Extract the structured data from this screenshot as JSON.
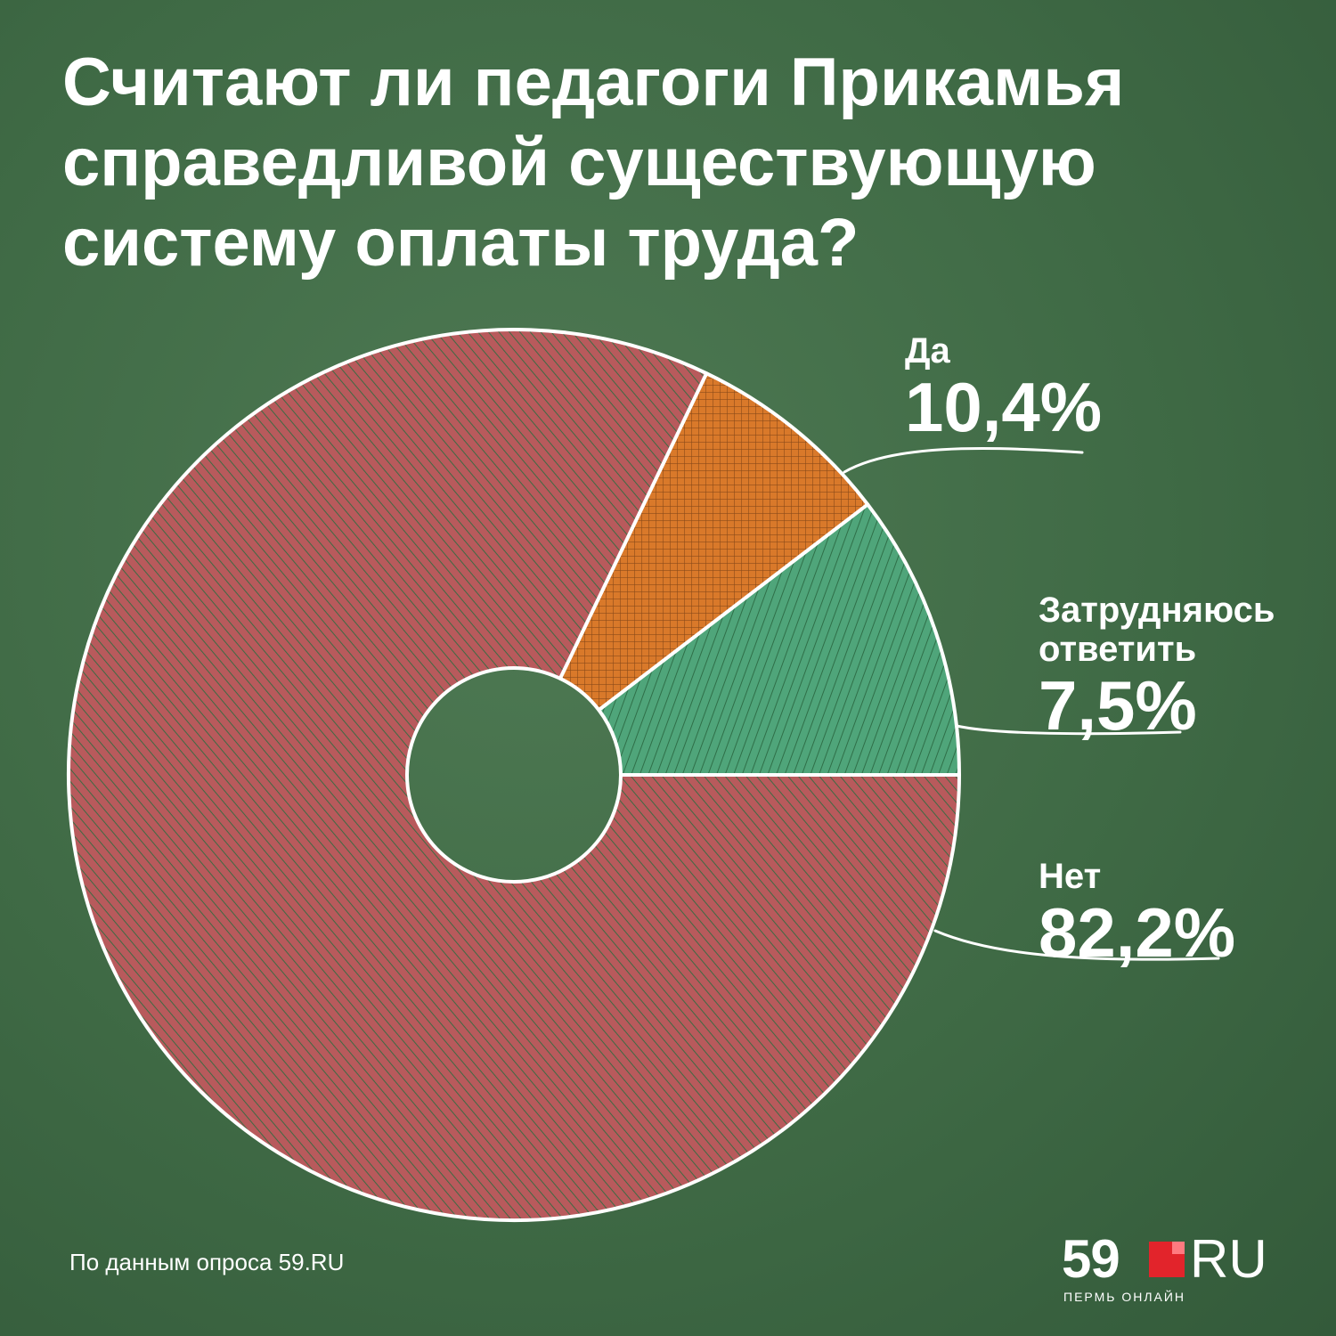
{
  "title_lines": [
    "Считают ли педагоги Прикамья",
    "справедливой существующую",
    "систему оплаты труда?"
  ],
  "chart_data": {
    "type": "pie",
    "categories": [
      "Да",
      "Затрудняюсь ответить",
      "Нет"
    ],
    "labels": [
      "10,4%",
      "7,5%",
      "82,2%"
    ],
    "values": [
      10.4,
      7.5,
      82.2
    ],
    "colors": [
      "#4fa57a",
      "#d9792a",
      "#b85a5c"
    ]
  },
  "legend": {
    "yes": {
      "name": "Да",
      "value": "10,4%"
    },
    "unsure": {
      "name_line1": "Затрудняюсь",
      "name_line2": "ответить",
      "value": "7,5%"
    },
    "no": {
      "name": "Нет",
      "value": "82,2%"
    }
  },
  "source": "По данным опроса 59.RU",
  "logo": {
    "number": "59",
    "domain": "RU",
    "subtitle": "ПЕРМЬ ОНЛАЙН"
  }
}
